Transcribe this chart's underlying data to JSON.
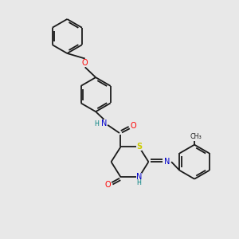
{
  "background_color": "#e8e8e8",
  "bond_color": "#1a1a1a",
  "atom_colors": {
    "N": "#0000cc",
    "O": "#ff0000",
    "S": "#cccc00",
    "H": "#008080",
    "C": "#1a1a1a"
  },
  "figsize": [
    3.0,
    3.0
  ],
  "dpi": 100,
  "lw": 1.3,
  "fs": 7.0,
  "fs_small": 5.8
}
